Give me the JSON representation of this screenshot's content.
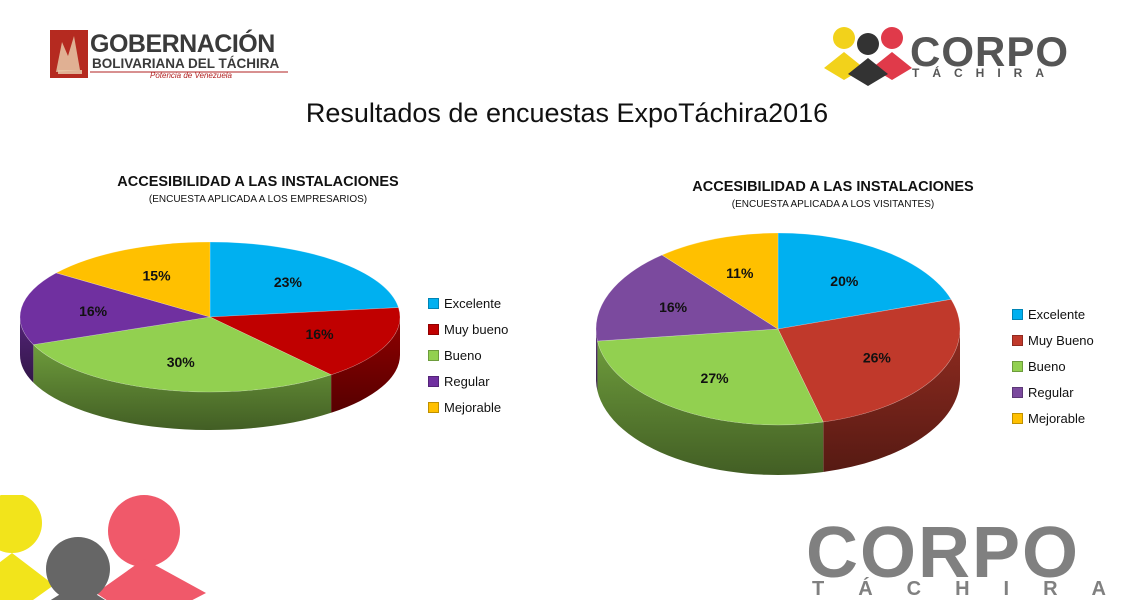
{
  "header": {
    "gobernacion_title": "GOBERNACIÓN",
    "gobernacion_subtitle": "BOLIVARIANA DEL TÁCHIRA",
    "gobernacion_tagline": "Potencia de Venezuela",
    "corpo_word": "CORPO",
    "corpo_sub": "TÁCHIRA"
  },
  "slide_title": "Resultados de encuestas ExpoTáchira2016",
  "footer": {
    "corpo_word": "CORPO",
    "corpo_sub": "TÁCHIRA"
  },
  "colors": {
    "Excelente": "#00B0F0",
    "Muy bueno": "#C00000",
    "Bueno": "#92D050",
    "Regular": "#7030A0",
    "Mejorable": "#FFC000"
  },
  "chart_data": [
    {
      "type": "pie",
      "title": "ACCESIBILIDAD A LAS INSTALACIONES",
      "subtitle": "(ENCUESTA  APLICADA A LOS EMPRESARIOS)",
      "categories": [
        "Excelente",
        "Muy bueno",
        "Bueno",
        "Regular",
        "Mejorable"
      ],
      "values": [
        23,
        16,
        30,
        16,
        15
      ],
      "labels": [
        "23%",
        "16%",
        "30%",
        "16%",
        "15%"
      ],
      "slice_colors": [
        "#00B0F0",
        "#C00000",
        "#92D050",
        "#7030A0",
        "#FFC000"
      ],
      "legend_position": "right"
    },
    {
      "type": "pie",
      "title": "ACCESIBILIDAD A LAS INSTALACIONES",
      "subtitle": "(ENCUESTA  APLICADA A LOS VISITANTES)",
      "categories": [
        "Excelente",
        "Muy Bueno",
        "Bueno",
        "Regular",
        "Mejorable"
      ],
      "values": [
        20,
        26,
        27,
        16,
        11
      ],
      "labels": [
        "20%",
        "26%",
        "27%",
        "16%",
        "11%"
      ],
      "slice_colors": [
        "#00B0F0",
        "#C0392B",
        "#92D050",
        "#7B4A9E",
        "#FFC000"
      ],
      "legend_position": "right"
    }
  ]
}
